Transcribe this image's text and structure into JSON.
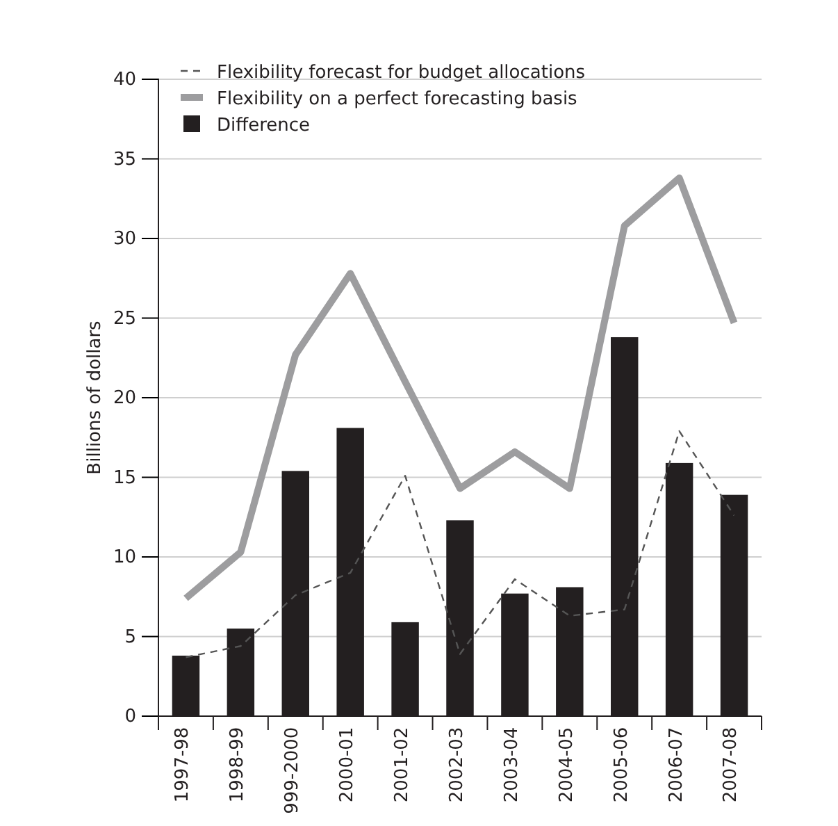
{
  "chart_data": {
    "type": "bar",
    "ylabel": "Billions of dollars",
    "categories": [
      "1997-98",
      "1998-99",
      "999-2000",
      "2000-01",
      "2001-02",
      "2002-03",
      "2003-04",
      "2004-05",
      "2005-06",
      "2006-07",
      "2007-08"
    ],
    "series": [
      {
        "name": "Flexibility forecast for budget allocations",
        "type": "line",
        "color": "#555555",
        "line_style": "dashed",
        "values": [
          3.7,
          4.4,
          7.6,
          9.0,
          15.1,
          3.9,
          8.6,
          6.3,
          6.7,
          17.9,
          12.6
        ]
      },
      {
        "name": "Flexibility on a perfect forecasting basis",
        "type": "line",
        "color": "#9d9d9f",
        "line_style": "solid",
        "values": [
          7.4,
          10.3,
          22.7,
          27.8,
          21.0,
          14.3,
          16.6,
          14.3,
          30.8,
          33.8,
          24.7
        ]
      },
      {
        "name": "Difference",
        "color": "#231f20",
        "values": [
          3.8,
          5.5,
          15.4,
          18.1,
          5.9,
          12.3,
          7.7,
          8.1,
          23.8,
          15.9,
          13.9
        ]
      }
    ],
    "ylim": [
      0,
      40
    ],
    "yticks": [
      0,
      5,
      10,
      15,
      20,
      25,
      30,
      35,
      40
    ],
    "grid": "y",
    "legend": "top left"
  }
}
